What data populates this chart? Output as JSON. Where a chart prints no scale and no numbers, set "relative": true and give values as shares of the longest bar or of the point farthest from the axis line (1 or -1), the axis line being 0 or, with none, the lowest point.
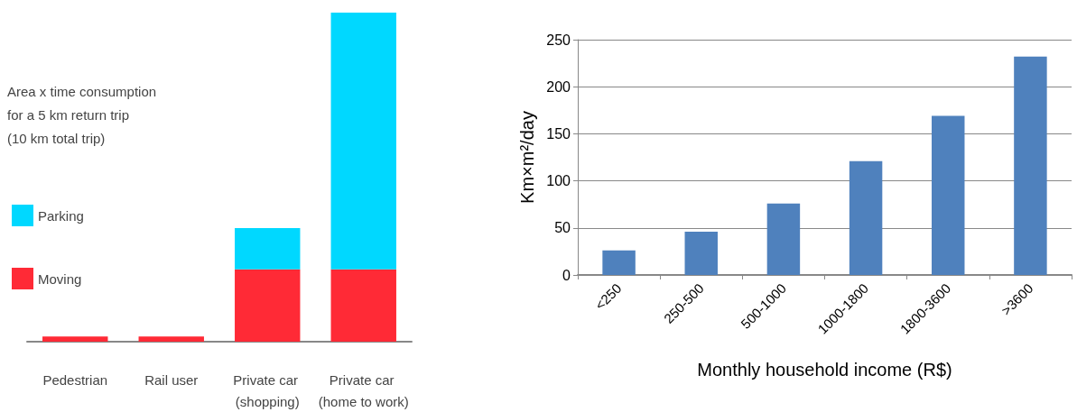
{
  "chart_data": [
    {
      "type": "bar",
      "stacked": true,
      "relative": true,
      "legend": "left",
      "legend_title": "Area x time consumption for a 5 km return trip (10 km total trip)",
      "categories": [
        "Pedestrian",
        "Rail user",
        "Private car (shopping)",
        "Private car (home to work)"
      ],
      "series": [
        {
          "name": "Moving",
          "color": "#ff2a36",
          "values": [
            0.016,
            0.016,
            0.22,
            0.22
          ]
        },
        {
          "name": "Parking",
          "color": "#00d8ff",
          "values": [
            0,
            0,
            0.125,
            0.78
          ]
        }
      ]
    },
    {
      "type": "bar",
      "xlabel": "Monthly household income (R$)",
      "ylabel": "Km×m²/day",
      "categories": [
        "<250",
        "250-500",
        "500-1000",
        "1000-1800",
        "1800-3600",
        ">3600"
      ],
      "series": [
        {
          "color": "#4f81bd",
          "values": [
            26,
            46,
            76,
            121,
            169,
            232
          ]
        }
      ],
      "ylim": [
        0,
        250
      ],
      "yticks": [
        0,
        50,
        100,
        150,
        200,
        250
      ],
      "grid": "y"
    }
  ]
}
